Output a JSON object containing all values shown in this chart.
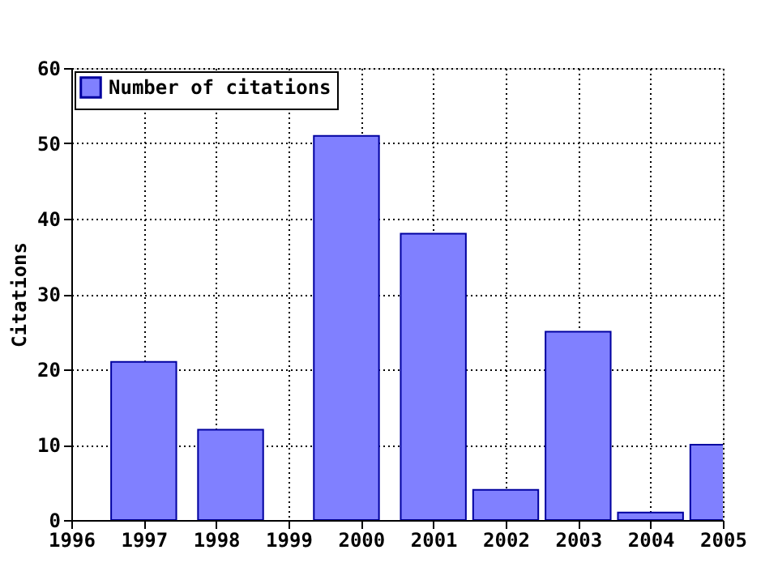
{
  "chart_data": {
    "type": "bar",
    "ylabel": "Citations",
    "x": [
      1997,
      1998.2,
      1999.8,
      2001,
      2002,
      2003,
      2004,
      2005
    ],
    "series": [
      {
        "name": "Number of citations",
        "color": "#8080ff",
        "values": [
          21,
          12,
          51,
          38,
          4,
          25,
          1,
          10
        ]
      }
    ],
    "xlim": [
      1996,
      2005
    ],
    "xticks": [
      1996,
      1997,
      1998,
      1999,
      2000,
      2001,
      2002,
      2003,
      2004,
      2005
    ],
    "ylim": [
      0,
      60
    ],
    "yticks": [
      0,
      10,
      20,
      30,
      40,
      50,
      60
    ],
    "grid": true,
    "legend": "top left"
  }
}
